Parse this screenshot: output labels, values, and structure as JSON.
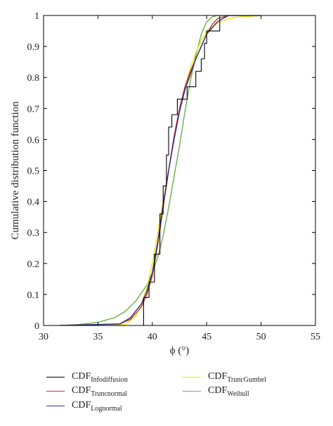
{
  "chart_data": {
    "type": "line",
    "xlabel": "ϕ (°)",
    "ylabel": "Cumulative distribution function",
    "xlim": [
      30,
      55
    ],
    "ylim": [
      0,
      1
    ],
    "x_ticks": [
      "30",
      "35",
      "40",
      "45",
      "50",
      "55"
    ],
    "y_ticks": [
      "0",
      "0.1",
      "0.2",
      "0.3",
      "0.4",
      "0.5",
      "0.6",
      "0.7",
      "0.8",
      "0.9",
      "1"
    ],
    "grid": false,
    "legend_position": "below plot",
    "series": [
      {
        "name_main": "CDF",
        "name_sub": "Infodiffusion",
        "color": "#000000",
        "step": true,
        "x": [
          31.5,
          39.2,
          39.2,
          39.7,
          39.7,
          40.2,
          40.2,
          40.7,
          40.7,
          41.0,
          41.0,
          41.3,
          41.3,
          41.5,
          41.5,
          41.8,
          41.8,
          42.3,
          42.3,
          43.2,
          43.2,
          44.0,
          44.0,
          44.5,
          44.5,
          44.8,
          44.8,
          45.0,
          45.0,
          45.5,
          45.5,
          46.2,
          46.2,
          46.6,
          46.6,
          50.0
        ],
        "y": [
          0.0,
          0.0,
          0.09,
          0.09,
          0.14,
          0.14,
          0.23,
          0.23,
          0.36,
          0.36,
          0.45,
          0.45,
          0.55,
          0.55,
          0.64,
          0.64,
          0.68,
          0.68,
          0.73,
          0.73,
          0.77,
          0.77,
          0.82,
          0.82,
          0.86,
          0.86,
          0.91,
          0.91,
          0.95,
          0.95,
          0.95,
          0.95,
          1.0,
          1.0,
          1.0,
          1.0
        ]
      },
      {
        "name_main": "CDF",
        "name_sub": "Truncnormal",
        "color": "#c0392b",
        "x": [
          31.5,
          37.0,
          38.0,
          39.0,
          39.5,
          40.0,
          40.5,
          41.0,
          41.5,
          42.0,
          42.5,
          43.0,
          43.5,
          44.0,
          44.5,
          45.0,
          45.5,
          46.0,
          47.0,
          50.0
        ],
        "y": [
          0.0,
          0.005,
          0.02,
          0.06,
          0.1,
          0.16,
          0.26,
          0.38,
          0.5,
          0.61,
          0.7,
          0.77,
          0.82,
          0.86,
          0.9,
          0.94,
          0.97,
          0.99,
          1.0,
          1.0
        ]
      },
      {
        "name_main": "CDF",
        "name_sub": "Lognormal",
        "color": "#2c2f8a",
        "x": [
          31.5,
          37.0,
          38.0,
          39.0,
          39.5,
          40.0,
          40.5,
          41.0,
          41.5,
          42.0,
          42.5,
          43.0,
          43.5,
          44.0,
          44.5,
          45.0,
          45.5,
          46.0,
          47.0,
          50.0
        ],
        "y": [
          0.0,
          0.005,
          0.025,
          0.07,
          0.11,
          0.17,
          0.27,
          0.39,
          0.5,
          0.6,
          0.69,
          0.76,
          0.81,
          0.86,
          0.9,
          0.94,
          0.96,
          0.98,
          1.0,
          1.0
        ]
      },
      {
        "name_main": "CDF",
        "name_sub": "TruncGumbel",
        "color": "#f2e800",
        "x": [
          31.5,
          37.5,
          38.5,
          39.0,
          39.5,
          40.0,
          40.5,
          41.0,
          41.5,
          42.0,
          42.5,
          43.0,
          43.5,
          44.0,
          44.5,
          45.0,
          46.0,
          47.0,
          48.0,
          50.0
        ],
        "y": [
          0.0,
          0.003,
          0.03,
          0.07,
          0.12,
          0.2,
          0.3,
          0.4,
          0.5,
          0.6,
          0.69,
          0.77,
          0.83,
          0.88,
          0.92,
          0.95,
          0.975,
          0.99,
          0.995,
          1.0
        ]
      },
      {
        "name_main": "CDF",
        "name_sub": "Weibull",
        "color": "#6ab04c",
        "x": [
          31.5,
          33.0,
          35.0,
          36.5,
          37.5,
          38.5,
          39.5,
          40.0,
          40.5,
          41.0,
          41.5,
          42.0,
          42.5,
          43.0,
          43.5,
          44.0,
          44.5,
          45.0,
          45.5,
          46.0,
          50.0
        ],
        "y": [
          0.0,
          0.002,
          0.01,
          0.025,
          0.045,
          0.08,
          0.13,
          0.17,
          0.22,
          0.29,
          0.38,
          0.48,
          0.58,
          0.69,
          0.79,
          0.87,
          0.94,
          0.98,
          0.995,
          1.0,
          1.0
        ]
      }
    ]
  }
}
